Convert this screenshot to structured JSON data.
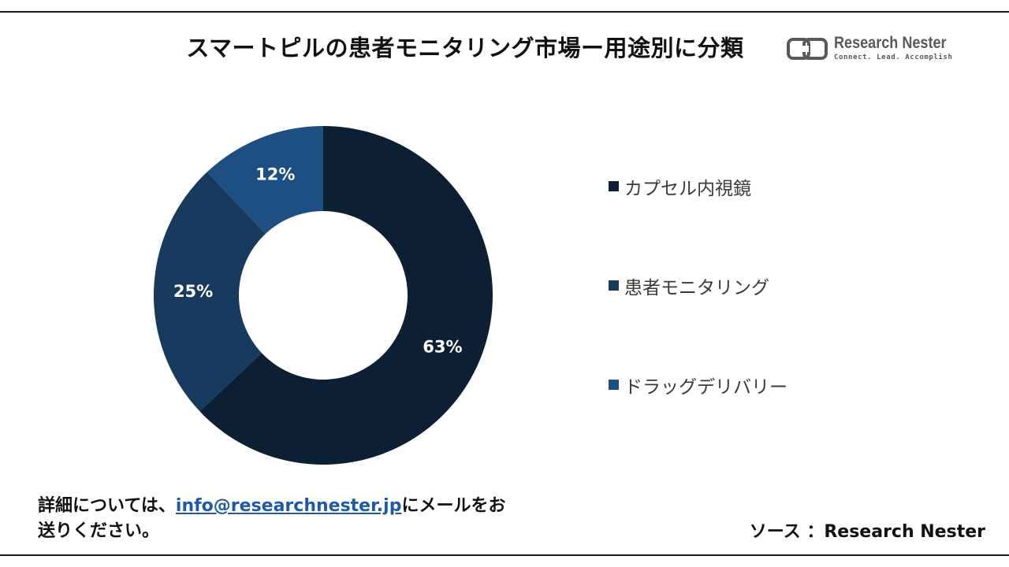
{
  "title": "スマートピルの患者モニタリング市場ー用途別に分類",
  "logo": {
    "name": "Research Nester",
    "tagline": "Connect. Lead. Accomplish"
  },
  "colors": {
    "segment_1": "#0c1f33",
    "segment_2": "#173a5e",
    "segment_3": "#1e4f82",
    "label_text": "#ffffff"
  },
  "chart_data": {
    "type": "pie",
    "donut": true,
    "title": "スマートピルの患者モニタリング市場ー用途別に分類",
    "categories": [
      "カプセル内視鏡",
      "患者モニタリング",
      "ドラッグデリバリー"
    ],
    "values": [
      63,
      25,
      12
    ],
    "unit": "%",
    "data_labels": [
      "63%",
      "25%",
      "12%"
    ],
    "legend_placement": "right"
  },
  "footer": {
    "note_before": "詳細については、",
    "email": "info@researchnester.jp",
    "note_after": "にメールをお",
    "note_line2": "送りください。",
    "source": "ソース ：Research Nester"
  }
}
